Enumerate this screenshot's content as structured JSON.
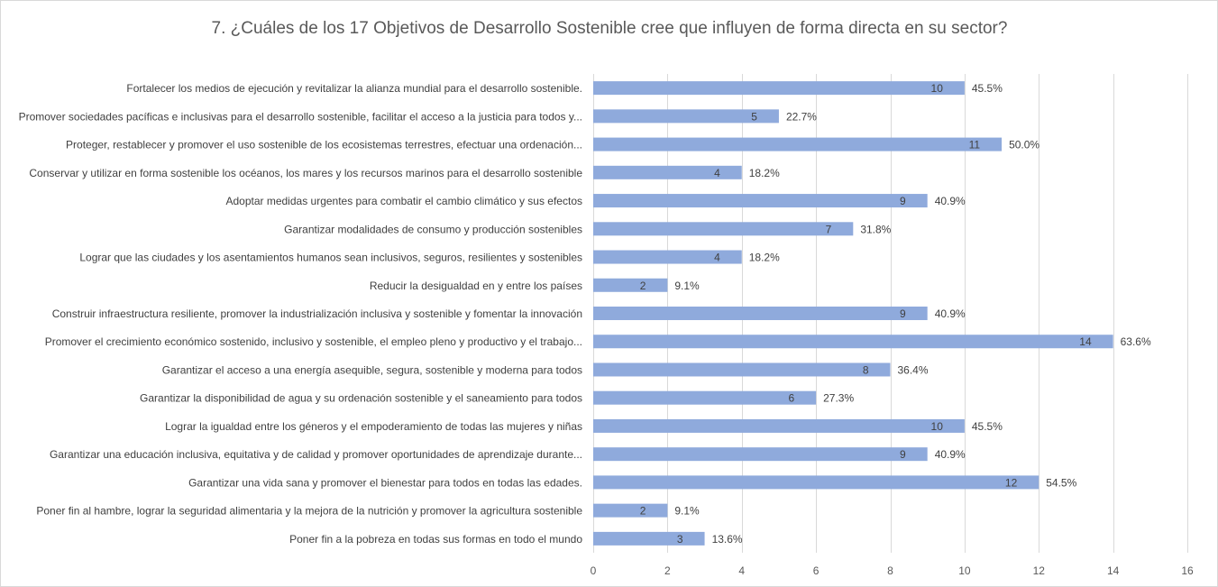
{
  "chart_data": {
    "type": "bar",
    "orientation": "horizontal",
    "title": "7. ¿Cuáles de los 17 Objetivos de Desarrollo Sostenible cree que influyen de forma directa en su sector?",
    "xlim": [
      0,
      16
    ],
    "xticks": [
      0,
      2,
      4,
      6,
      8,
      10,
      12,
      14,
      16
    ],
    "grid": true,
    "bar_color": "#8faadc",
    "categories": [
      "Fortalecer los medios de ejecución y revitalizar la alianza mundial para el desarrollo sostenible.",
      "Promover sociedades pacíficas e inclusivas para el desarrollo sostenible, facilitar el acceso a la justicia para todos y...",
      "Proteger, restablecer y promover el uso sostenible de los ecosistemas terrestres, efectuar una ordenación...",
      "Conservar y utilizar en forma sostenible los océanos, los mares y los recursos marinos para el desarrollo sostenible",
      "Adoptar medidas urgentes para combatir el cambio climático y sus efectos",
      "Garantizar modalidades de consumo y producción sostenibles",
      "Lograr que las ciudades y los asentamientos humanos sean inclusivos, seguros, resilientes y sostenibles",
      "Reducir la desigualdad en y entre los países",
      "Construir infraestructura resiliente, promover la industrialización inclusiva y sostenible y fomentar la innovación",
      "Promover el crecimiento económico sostenido, inclusivo y sostenible, el empleo pleno y productivo y el trabajo...",
      "Garantizar el acceso a una energía asequible, segura, sostenible y moderna para todos",
      "Garantizar la disponibilidad de agua y su ordenación sostenible y el saneamiento para todos",
      "Lograr la igualdad entre los géneros y el empoderamiento de todas las mujeres y niñas",
      "Garantizar una educación inclusiva, equitativa y de calidad y promover oportunidades de aprendizaje durante...",
      "Garantizar una vida sana y promover el bienestar para todos en todas las edades.",
      "Poner fin al hambre, lograr la seguridad alimentaria y la mejora de la nutrición y promover la agricultura sostenible",
      "Poner fin a la pobreza en todas sus formas en todo el mundo"
    ],
    "values": [
      10,
      5,
      11,
      4,
      9,
      7,
      4,
      2,
      9,
      14,
      8,
      6,
      10,
      9,
      12,
      2,
      3
    ],
    "percent_labels": [
      "45.5%",
      "22.7%",
      "50.0%",
      "18.2%",
      "40.9%",
      "31.8%",
      "18.2%",
      "9.1%",
      "40.9%",
      "63.6%",
      "36.4%",
      "27.3%",
      "45.5%",
      "40.9%",
      "54.5%",
      "9.1%",
      "13.6%"
    ]
  }
}
